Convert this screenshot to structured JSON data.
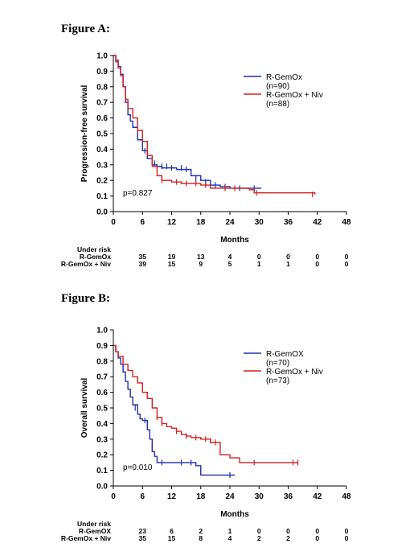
{
  "chart_data": [
    {
      "type": "line",
      "figure_label": "Figure A:",
      "xlabel": "Months",
      "ylabel": "Progression-free survival",
      "xlim": [
        0,
        48
      ],
      "ylim": [
        0,
        1
      ],
      "x_ticks": [
        "0",
        "6",
        "12",
        "18",
        "24",
        "30",
        "36",
        "42",
        "48"
      ],
      "y_ticks": [
        "0.0",
        "0.1",
        "0.2",
        "0.3",
        "0.4",
        "0.5",
        "0.6",
        "0.7",
        "0.8",
        "0.9",
        "1.0"
      ],
      "annotation": "p=0.827",
      "series": [
        {
          "name": "R-GemOx",
          "n_label": "(n=90)",
          "color": "#1f2fb0",
          "points": [
            [
              0,
              1.0
            ],
            [
              0.5,
              0.97
            ],
            [
              1,
              0.93
            ],
            [
              1.5,
              0.88
            ],
            [
              2,
              0.8
            ],
            [
              2.5,
              0.7
            ],
            [
              3,
              0.62
            ],
            [
              3.5,
              0.58
            ],
            [
              4,
              0.54
            ],
            [
              5,
              0.46
            ],
            [
              6,
              0.39
            ],
            [
              7,
              0.34
            ],
            [
              8,
              0.3
            ],
            [
              9,
              0.29
            ],
            [
              10,
              0.28
            ],
            [
              13,
              0.27
            ],
            [
              16,
              0.23
            ],
            [
              18,
              0.2
            ],
            [
              20,
              0.17
            ],
            [
              22,
              0.16
            ],
            [
              24,
              0.15
            ],
            [
              30.5,
              0.15
            ]
          ],
          "censored": [
            [
              6.5,
              0.39
            ],
            [
              8.5,
              0.31
            ],
            [
              10,
              0.29
            ],
            [
              11,
              0.29
            ],
            [
              12,
              0.28
            ],
            [
              14,
              0.28
            ],
            [
              15,
              0.27
            ],
            [
              17,
              0.21
            ],
            [
              19,
              0.19
            ],
            [
              21,
              0.17
            ],
            [
              23,
              0.16
            ],
            [
              26,
              0.15
            ],
            [
              29,
              0.15
            ]
          ]
        },
        {
          "name": "R-GemOx + Niv",
          "n_label": "(n=88)",
          "color": "#d42020",
          "points": [
            [
              0,
              1.0
            ],
            [
              0.5,
              0.96
            ],
            [
              1,
              0.92
            ],
            [
              1.5,
              0.87
            ],
            [
              2,
              0.8
            ],
            [
              2.5,
              0.72
            ],
            [
              3,
              0.66
            ],
            [
              4,
              0.6
            ],
            [
              5,
              0.52
            ],
            [
              6,
              0.45
            ],
            [
              7,
              0.36
            ],
            [
              8,
              0.29
            ],
            [
              9,
              0.23
            ],
            [
              10,
              0.2
            ],
            [
              12,
              0.19
            ],
            [
              14,
              0.18
            ],
            [
              16,
              0.18
            ],
            [
              18,
              0.17
            ],
            [
              20,
              0.15
            ],
            [
              22,
              0.15
            ],
            [
              24,
              0.15
            ],
            [
              28,
              0.14
            ],
            [
              29,
              0.12
            ],
            [
              34,
              0.12
            ],
            [
              41.5,
              0.11
            ]
          ],
          "censored": [
            [
              10,
              0.2
            ],
            [
              13,
              0.19
            ],
            [
              15,
              0.18
            ],
            [
              17,
              0.18
            ],
            [
              19,
              0.17
            ],
            [
              23,
              0.15
            ],
            [
              25,
              0.15
            ],
            [
              29.5,
              0.12
            ],
            [
              41,
              0.11
            ]
          ]
        }
      ],
      "risk_table": {
        "header": "Under risk",
        "times": [
          0,
          6,
          12,
          18,
          24,
          30,
          36,
          42,
          48
        ],
        "rows": [
          {
            "label": "R-GemOx",
            "values": [
              "",
              "35",
              "19",
              "13",
              "4",
              "0",
              "0",
              "0",
              "0"
            ]
          },
          {
            "label": "R-GemOx + Niv",
            "values": [
              "",
              "39",
              "15",
              "9",
              "5",
              "1",
              "1",
              "0",
              "0"
            ]
          }
        ]
      }
    },
    {
      "type": "line",
      "figure_label": "Figure B:",
      "xlabel": "Months",
      "ylabel": "Overall survival",
      "xlim": [
        0,
        48
      ],
      "ylim": [
        0,
        1
      ],
      "x_ticks": [
        "0",
        "6",
        "12",
        "18",
        "24",
        "30",
        "36",
        "42",
        "48"
      ],
      "y_ticks": [
        "0.0",
        "0.1",
        "0.2",
        "0.3",
        "0.4",
        "0.5",
        "0.6",
        "0.7",
        "0.8",
        "0.9",
        "1.0"
      ],
      "annotation": "p=0.010",
      "series": [
        {
          "name": "R-GemOX",
          "n_label": "(n=70)",
          "color": "#1f2fb0",
          "points": [
            [
              0,
              0.9
            ],
            [
              0.5,
              0.86
            ],
            [
              1,
              0.82
            ],
            [
              1.5,
              0.78
            ],
            [
              2,
              0.73
            ],
            [
              2.5,
              0.67
            ],
            [
              3,
              0.62
            ],
            [
              3.5,
              0.57
            ],
            [
              4,
              0.52
            ],
            [
              5,
              0.46
            ],
            [
              5.5,
              0.43
            ],
            [
              6,
              0.42
            ],
            [
              7,
              0.36
            ],
            [
              7.5,
              0.3
            ],
            [
              8,
              0.22
            ],
            [
              8.5,
              0.19
            ],
            [
              9,
              0.15
            ],
            [
              12,
              0.15
            ],
            [
              15,
              0.15
            ],
            [
              17,
              0.13
            ],
            [
              18,
              0.07
            ],
            [
              25,
              0.07
            ]
          ],
          "censored": [
            [
              4.5,
              0.5
            ],
            [
              6.5,
              0.42
            ],
            [
              8,
              0.25
            ],
            [
              10,
              0.15
            ],
            [
              14,
              0.15
            ],
            [
              16,
              0.15
            ],
            [
              24,
              0.07
            ]
          ]
        },
        {
          "name": "R-GemOx + Niv",
          "n_label": "(n=73)",
          "color": "#d42020",
          "points": [
            [
              0,
              0.9
            ],
            [
              0.5,
              0.86
            ],
            [
              1,
              0.83
            ],
            [
              2,
              0.78
            ],
            [
              3,
              0.74
            ],
            [
              4,
              0.7
            ],
            [
              5,
              0.66
            ],
            [
              6,
              0.6
            ],
            [
              7,
              0.56
            ],
            [
              8,
              0.5
            ],
            [
              9,
              0.44
            ],
            [
              10,
              0.4
            ],
            [
              11,
              0.38
            ],
            [
              12,
              0.37
            ],
            [
              13,
              0.35
            ],
            [
              14,
              0.33
            ],
            [
              15,
              0.32
            ],
            [
              16,
              0.31
            ],
            [
              18,
              0.3
            ],
            [
              20,
              0.28
            ],
            [
              22,
              0.2
            ],
            [
              24,
              0.18
            ],
            [
              26,
              0.15
            ],
            [
              38,
              0.15
            ]
          ],
          "censored": [
            [
              5,
              0.68
            ],
            [
              6,
              0.62
            ],
            [
              7,
              0.58
            ],
            [
              9,
              0.44
            ],
            [
              10,
              0.4
            ],
            [
              13,
              0.35
            ],
            [
              15,
              0.32
            ],
            [
              17,
              0.31
            ],
            [
              19,
              0.3
            ],
            [
              20,
              0.29
            ],
            [
              21,
              0.28
            ],
            [
              29,
              0.15
            ],
            [
              37,
              0.15
            ],
            [
              38,
              0.15
            ]
          ]
        }
      ],
      "risk_table": {
        "header": "Under risk",
        "times": [
          0,
          6,
          12,
          18,
          24,
          30,
          36,
          42,
          48
        ],
        "rows": [
          {
            "label": "R-GemOX",
            "values": [
              "",
              "23",
              "6",
              "2",
              "1",
              "0",
              "0",
              "0",
              "0"
            ]
          },
          {
            "label": "R-GemOx + Niv",
            "values": [
              "",
              "35",
              "15",
              "8",
              "4",
              "2",
              "2",
              "0",
              "0"
            ]
          }
        ]
      }
    }
  ]
}
